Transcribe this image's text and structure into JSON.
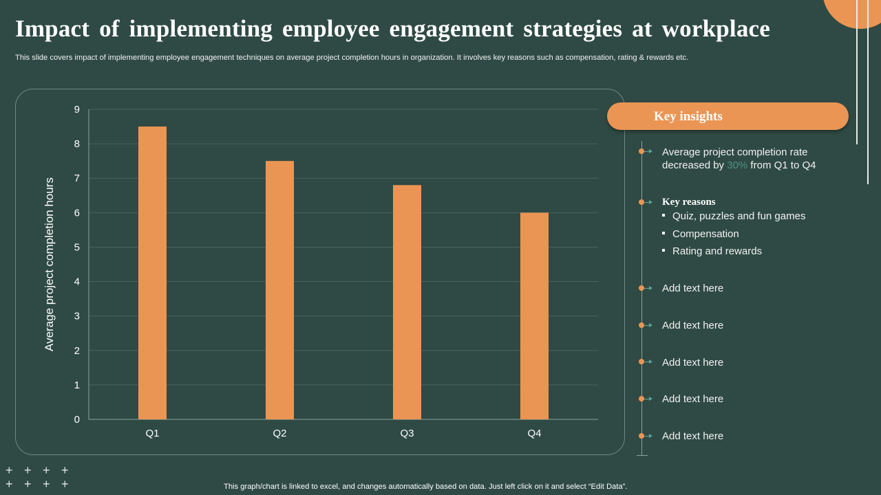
{
  "title": "Impact of implementing employee engagement strategies at workplace",
  "subtitle": "This slide covers impact of implementing employee engagement techniques on average project completion hours in organization. It involves key reasons such as  compensation, rating & rewards etc.",
  "chart_data": {
    "type": "bar",
    "categories": [
      "Q1",
      "Q2",
      "Q3",
      "Q4"
    ],
    "values": [
      8.5,
      7.5,
      6.8,
      6.0
    ],
    "ylabel": "Average  project completion hours",
    "xlabel": "",
    "ylim": [
      0,
      9
    ],
    "yticks": [
      0,
      1,
      2,
      3,
      4,
      5,
      6,
      7,
      8,
      9
    ],
    "grid": true,
    "bar_color": "#eb9554"
  },
  "insights": {
    "heading": "Key insights",
    "item1": {
      "line1": "Average project completion rate",
      "line2_pre": "decreased by ",
      "line2_highlight": "30%",
      "line2_post": " from Q1 to Q4"
    },
    "reasons_title": "Key reasons",
    "reasons": [
      "Quiz, puzzles and fun games",
      "Compensation",
      "Rating and rewards"
    ],
    "placeholders": [
      "Add text here",
      "Add text here",
      "Add text here",
      "Add text here",
      "Add text here"
    ]
  },
  "footer": "This graph/chart is linked to excel,  and changes automatically based on data. Just left click on it and select “Edit Data”.",
  "colors": {
    "background": "#2f4a44",
    "accent": "#eb9554",
    "highlight": "#4f8f84",
    "arrow": "#5fa39a"
  }
}
